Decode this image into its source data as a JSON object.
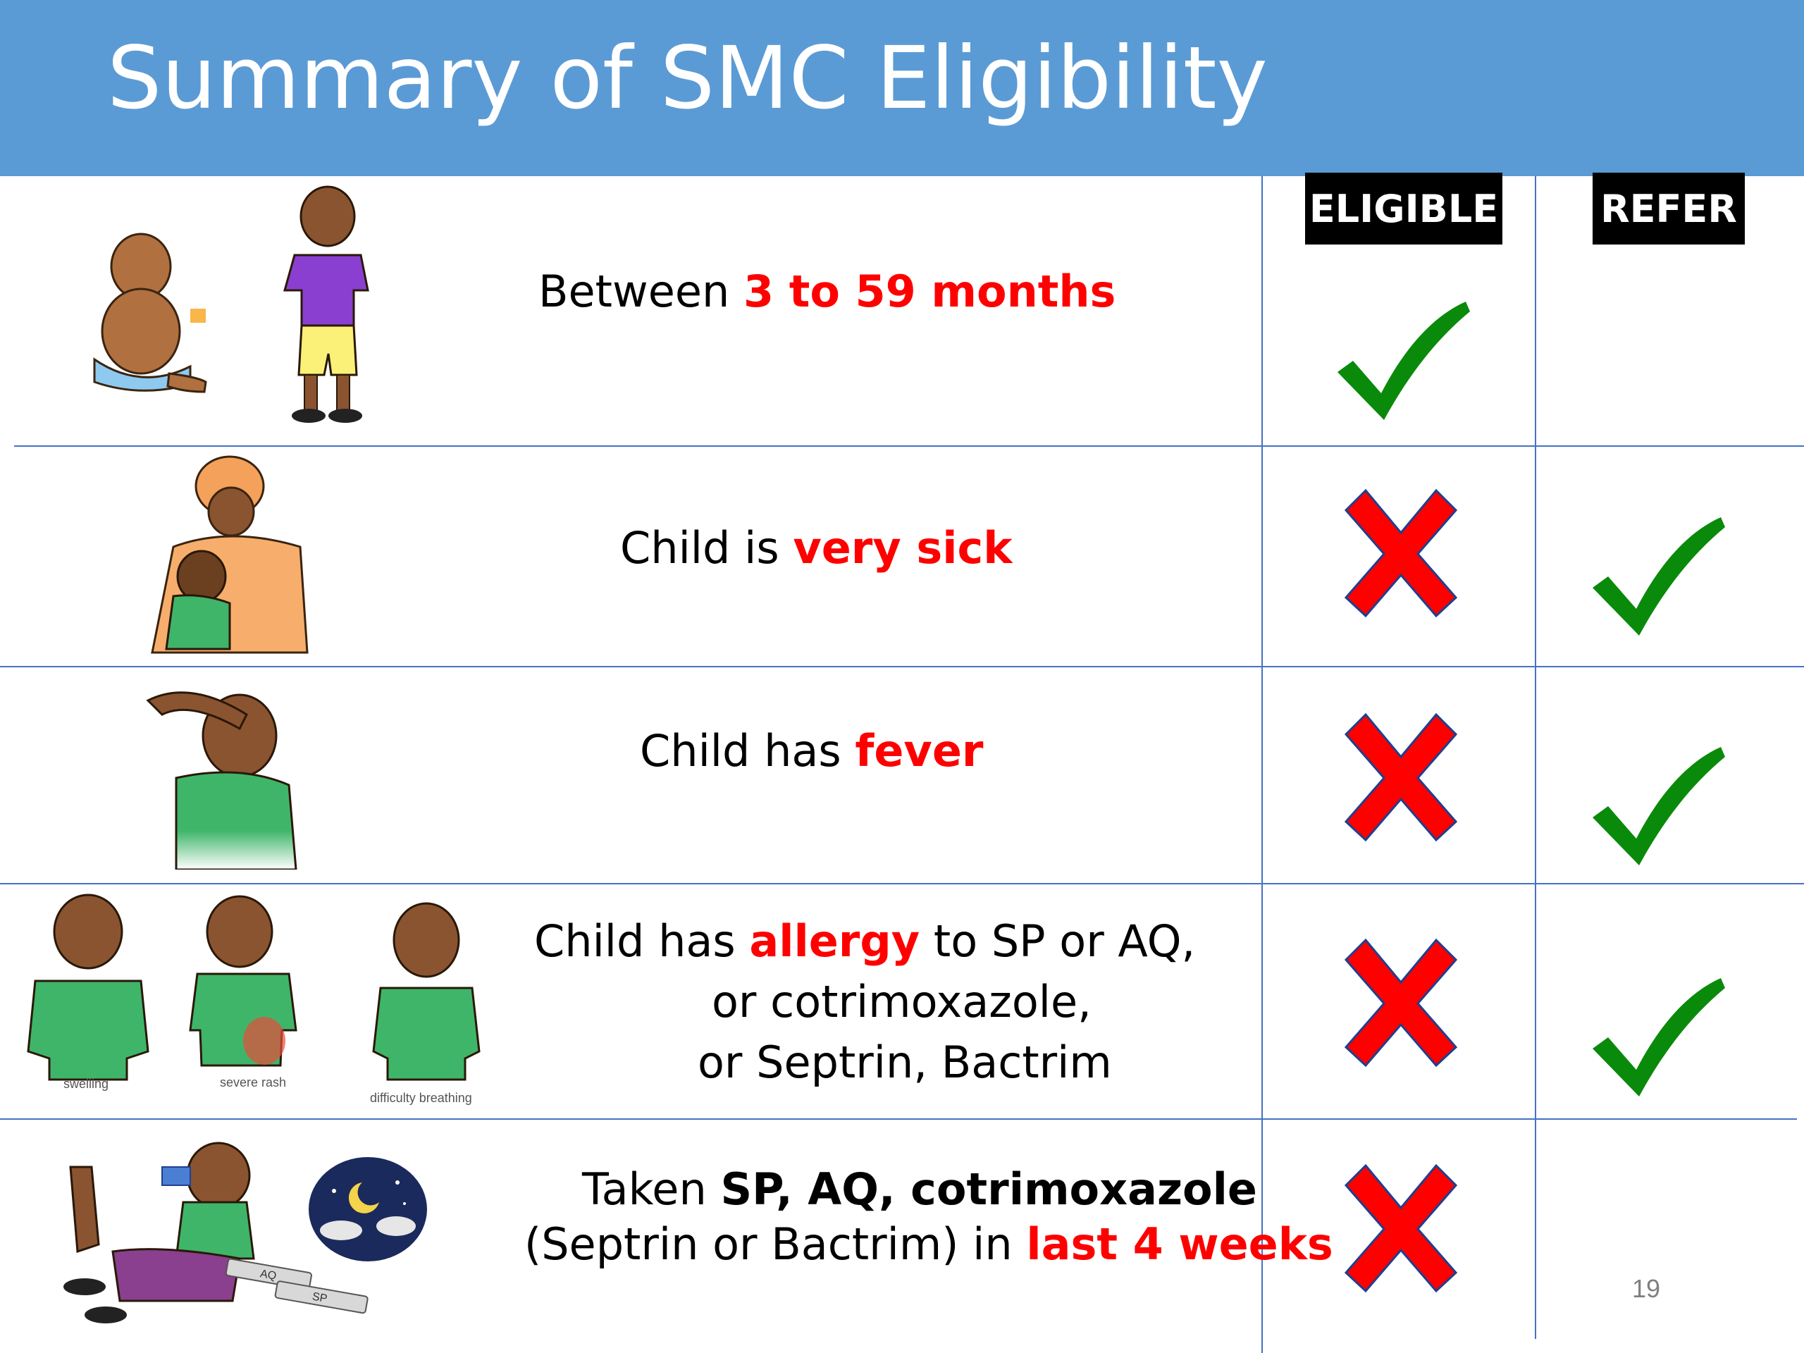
{
  "title": "Summary of SMC Eligibility",
  "headers": {
    "eligible": "ELIGIBLE",
    "refer": "REFER"
  },
  "rows": [
    {
      "parts": [
        "Between ",
        "3 to 59 months"
      ],
      "eligible": "check",
      "refer": "none"
    },
    {
      "parts": [
        "Child is ",
        "very sick"
      ],
      "eligible": "cross",
      "refer": "check"
    },
    {
      "parts": [
        "Child has ",
        "fever"
      ],
      "eligible": "cross",
      "refer": "check"
    },
    {
      "lines": [
        [
          "Child has ",
          "allergy",
          " to SP or AQ,"
        ],
        [
          "or cotrimoxazole,"
        ],
        [
          "or Septrin, Bactrim"
        ]
      ],
      "eligible": "cross",
      "refer": "check"
    },
    {
      "lines": [
        [
          "Taken ",
          "SP, AQ, cotrimoxazole"
        ],
        [
          "(Septrin or Bactrim) in ",
          "last 4 weeks"
        ]
      ],
      "eligible": "cross",
      "refer": "none"
    }
  ],
  "captions": [
    "swelling",
    "severe rash",
    "difficulty breathing"
  ],
  "packets": [
    "AQ",
    "SP"
  ],
  "page_number": "19",
  "colors": {
    "banner": "#5b9bd5",
    "highlight": "#ff0000",
    "check": "#0a8a0a",
    "cross": "#ff0000",
    "grid": "#4472c4"
  },
  "icons": [
    "check-icon",
    "cross-icon",
    "baby-illustration",
    "boy-illustration",
    "mother-carrying-child-illustration",
    "child-with-fever-illustration",
    "allergy-illustration",
    "child-taking-medicine-illustration",
    "night-moon-icon"
  ]
}
